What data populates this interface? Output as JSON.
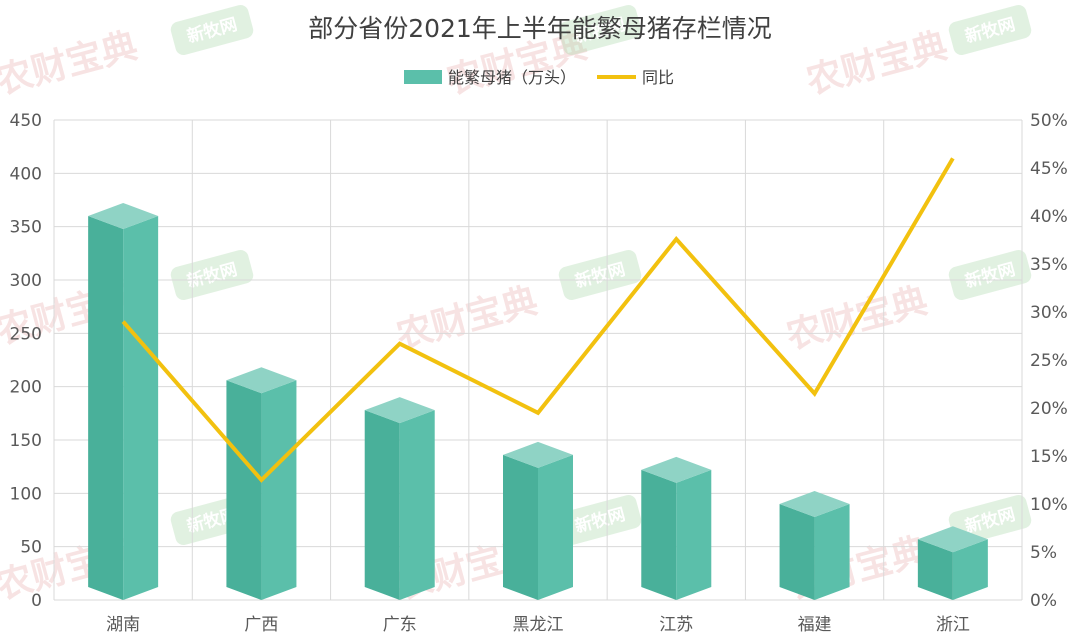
{
  "chart_data": {
    "type": "bar",
    "title": "部分省份2021年上半年能繁母猪存栏情况",
    "categories": [
      "湖南",
      "广西",
      "广东",
      "黑龙江",
      "江苏",
      "福建",
      "浙江"
    ],
    "series": [
      {
        "name": "能繁母猪（万头）",
        "type": "bar",
        "axis": "left",
        "values": [
          360,
          206,
          178,
          136,
          122,
          90,
          57
        ]
      },
      {
        "name": "同比",
        "type": "line",
        "axis": "right",
        "values": [
          0.29,
          0.125,
          0.267,
          0.195,
          0.376,
          0.215,
          0.46
        ]
      }
    ],
    "y_left": {
      "range": [
        0,
        450
      ],
      "ticks": [
        "0",
        "50",
        "100",
        "150",
        "200",
        "250",
        "300",
        "350",
        "400",
        "450"
      ]
    },
    "y_right": {
      "range": [
        0,
        0.5
      ],
      "ticks": [
        "0%",
        "5%",
        "10%",
        "15%",
        "20%",
        "25%",
        "30%",
        "35%",
        "40%",
        "45%",
        "50%"
      ]
    },
    "grid": true,
    "legend_position": "top-center",
    "colors": {
      "bar_front": "#5bbfaa",
      "bar_side": "#49b09a",
      "bar_top": "#8fd3c5",
      "line": "#f2c10f",
      "grid": "#d9d9d9"
    }
  },
  "watermarks": {
    "pink": "农财宝典",
    "green": "新牧网"
  }
}
